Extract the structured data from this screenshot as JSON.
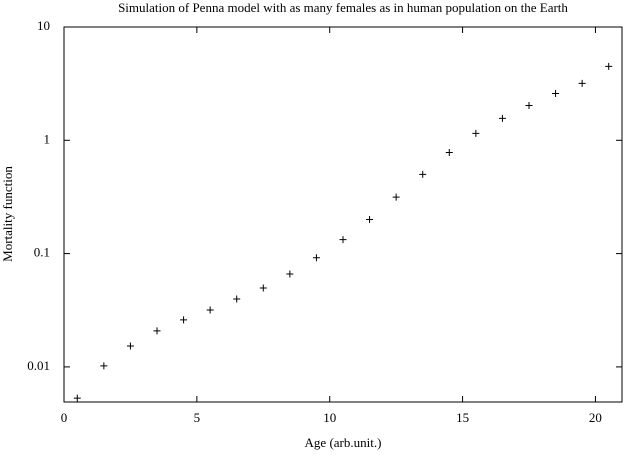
{
  "chart_data": {
    "type": "scatter",
    "title": "Simulation of Penna model with as many females as in human population on the Earth",
    "x_label": "Age (arb.unit.)",
    "y_label": "Mortality function",
    "y_scale": "log",
    "marker": "plus",
    "color": "#000000",
    "xlim": [
      0,
      21
    ],
    "ylim": [
      0.0049,
      10
    ],
    "xticks": [
      0,
      5,
      10,
      15,
      20
    ],
    "yticks": [
      0.01,
      0.1,
      1,
      10
    ],
    "x": [
      0.5,
      1.5,
      2.5,
      3.5,
      4.5,
      5.5,
      6.5,
      7.5,
      8.5,
      9.5,
      10.5,
      11.5,
      12.5,
      13.5,
      14.5,
      15.5,
      16.5,
      17.5,
      18.5,
      19.5,
      20.5
    ],
    "values": [
      0.0053,
      0.0102,
      0.0153,
      0.0208,
      0.026,
      0.0318,
      0.0397,
      0.0497,
      0.066,
      0.092,
      0.133,
      0.2,
      0.315,
      0.5,
      0.78,
      1.15,
      1.56,
      2.03,
      2.59,
      3.18,
      4.49
    ]
  }
}
